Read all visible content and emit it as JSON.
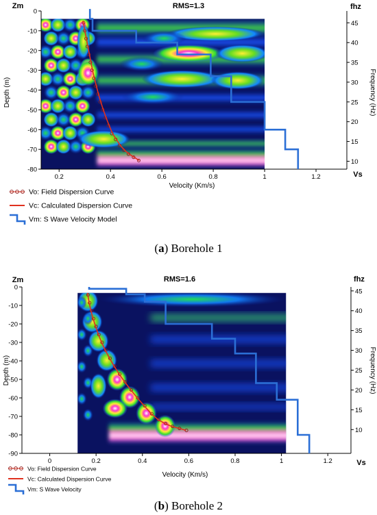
{
  "chart_data": [
    {
      "type": "line",
      "title": "RMS=1.3",
      "caption_letter": "a",
      "caption_text": " Borehole 1",
      "xlabel": "Velocity (Km/s)",
      "x_axis_end_label": "Vs",
      "ylabel": "Depth (m)",
      "y_axis_top_label": "Zm",
      "y2label": "Frequency (Hz)",
      "y2_axis_top_label": "fhz",
      "xlim": [
        0.13,
        1.32
      ],
      "ylim": [
        -80,
        0
      ],
      "y2lim": [
        8,
        48
      ],
      "xticks": [
        0.2,
        0.4,
        0.6,
        0.8,
        1,
        1.2
      ],
      "xtick_labels": [
        "0.2",
        "0.4",
        "0.6",
        "0.8",
        "1",
        "1.2"
      ],
      "yticks": [
        0,
        -10,
        -20,
        -30,
        -40,
        -50,
        -60,
        -70,
        -80
      ],
      "ytick_labels": [
        "0",
        "-10",
        "-20",
        "-30",
        "-40",
        "-50",
        "-60",
        "-70",
        "-80"
      ],
      "y2ticks": [
        10,
        15,
        20,
        25,
        30,
        35,
        40,
        45
      ],
      "y2tick_labels": [
        "10",
        "15",
        "20",
        "25",
        "30",
        "35",
        "40",
        "45"
      ],
      "spectrum_range_x": [
        0.13,
        1.0
      ],
      "spectrum_range_freq": [
        8,
        46
      ],
      "legend": {
        "position": "bottom-left",
        "entries": [
          "Vo: Field Dispersion Curve",
          "Vc: Calculated Dispersion Curve",
          "Vm: S Wave Velocity Model"
        ]
      },
      "series": [
        {
          "kind": "step",
          "axis": "depth",
          "color": "#2b6fd6",
          "x": [
            0.32,
            0.32,
            0.33,
            0.33,
            0.5,
            0.5,
            0.66,
            0.66,
            0.79,
            0.79,
            0.87,
            0.87,
            1.0,
            1.0,
            1.08,
            1.08,
            1.13,
            1.13
          ],
          "y": [
            1,
            -4,
            -4,
            -10,
            -10,
            -16,
            -16,
            -22,
            -22,
            -33,
            -33,
            -46,
            -46,
            -60,
            -60,
            -70,
            -70,
            -80
          ]
        },
        {
          "kind": "markers",
          "axis": "frequency",
          "color": "#8b1a1a",
          "x": [
            0.295,
            0.3,
            0.305,
            0.31,
            0.316,
            0.322,
            0.328,
            0.335,
            0.343,
            0.351,
            0.36,
            0.37,
            0.38,
            0.392,
            0.405,
            0.42,
            0.435,
            0.452,
            0.47,
            0.49,
            0.51
          ],
          "y": [
            45,
            43,
            41,
            39,
            37,
            35,
            33,
            31,
            29,
            27,
            25,
            23,
            21,
            19,
            17,
            15.5,
            14,
            12.8,
            11.8,
            11,
            10.2
          ]
        },
        {
          "kind": "line",
          "axis": "frequency",
          "color": "#e0301e",
          "x": [
            0.293,
            0.3,
            0.306,
            0.312,
            0.318,
            0.324,
            0.33,
            0.337,
            0.345,
            0.353,
            0.362,
            0.372,
            0.383,
            0.395,
            0.408,
            0.423,
            0.438,
            0.455,
            0.473,
            0.492,
            0.512
          ],
          "y": [
            45.5,
            43,
            41,
            39,
            37,
            35,
            33,
            31,
            29,
            27,
            25,
            23,
            21,
            19,
            17,
            15.5,
            14,
            12.8,
            11.8,
            11,
            10.2
          ]
        }
      ]
    },
    {
      "type": "line",
      "title": "RMS=1.6",
      "caption_letter": "b",
      "caption_text": " Borehole 2",
      "xlabel": "Velocity (Km/s)",
      "x_axis_end_label": "Vs",
      "ylabel": "Depth (m)",
      "y_axis_top_label": "Zm",
      "y2label": "Frequency (Hz)",
      "y2_axis_top_label": "fhz",
      "xlim": [
        -0.12,
        1.3
      ],
      "ylim": [
        -90,
        0
      ],
      "y2lim": [
        4,
        46
      ],
      "xticks": [
        0,
        0.2,
        0.4,
        0.6,
        0.8,
        1,
        1.2
      ],
      "xtick_labels": [
        "0",
        "0.2",
        "0.4",
        "0.6",
        "0.8",
        "1",
        "1.2"
      ],
      "yticks": [
        0,
        -10,
        -20,
        -30,
        -40,
        -50,
        -60,
        -70,
        -80,
        -90
      ],
      "ytick_labels": [
        "0",
        "-10",
        "-20",
        "-30",
        "-40",
        "-50",
        "-60",
        "-70",
        "-80",
        "-90"
      ],
      "y2ticks": [
        10,
        15,
        20,
        25,
        30,
        35,
        40,
        45
      ],
      "y2tick_labels": [
        "10",
        "15",
        "20",
        "25",
        "30",
        "35",
        "40",
        "45"
      ],
      "spectrum_range_x": [
        0.12,
        1.02
      ],
      "spectrum_range_freq": [
        4,
        44.5
      ],
      "legend": {
        "position": "bottom-left",
        "entries": [
          "Vo: Field Dispersion Curve",
          "Vc: Calculated Dispersion Curve",
          "Vm: S Wave Velocity"
        ]
      },
      "series": [
        {
          "kind": "step",
          "axis": "depth",
          "color": "#2b6fd6",
          "x": [
            0.17,
            0.17,
            0.33,
            0.33,
            0.41,
            0.41,
            0.5,
            0.5,
            0.7,
            0.7,
            0.8,
            0.8,
            0.89,
            0.89,
            0.98,
            0.98,
            1.07,
            1.07,
            1.12,
            1.12
          ],
          "y": [
            0,
            -1,
            -1,
            -4,
            -4,
            -8,
            -8,
            -20,
            -20,
            -28,
            -28,
            -36,
            -36,
            -52,
            -52,
            -61,
            -61,
            -80,
            -80,
            -90
          ]
        },
        {
          "kind": "markers",
          "axis": "frequency",
          "color": "#8b1a1a",
          "x": [
            0.165,
            0.172,
            0.18,
            0.189,
            0.2,
            0.212,
            0.226,
            0.242,
            0.26,
            0.28,
            0.302,
            0.326,
            0.352,
            0.38,
            0.41,
            0.44,
            0.47,
            0.5,
            0.53,
            0.56,
            0.59
          ],
          "y": [
            44,
            42,
            40,
            38,
            36,
            34,
            32,
            30,
            28,
            26,
            24,
            22,
            20,
            18,
            16,
            14,
            12.5,
            11.5,
            10.8,
            10.3,
            9.8
          ]
        },
        {
          "kind": "line",
          "axis": "frequency",
          "color": "#e0301e",
          "x": [
            0.163,
            0.17,
            0.178,
            0.187,
            0.198,
            0.21,
            0.224,
            0.24,
            0.258,
            0.278,
            0.3,
            0.324,
            0.35,
            0.378,
            0.408,
            0.438,
            0.468,
            0.498,
            0.528,
            0.558,
            0.588
          ],
          "y": [
            44.5,
            42,
            40,
            38,
            36,
            34,
            32,
            30,
            28,
            26,
            24,
            22,
            20,
            18,
            16,
            14,
            12.5,
            11.5,
            10.8,
            10.3,
            9.8
          ]
        }
      ]
    }
  ]
}
